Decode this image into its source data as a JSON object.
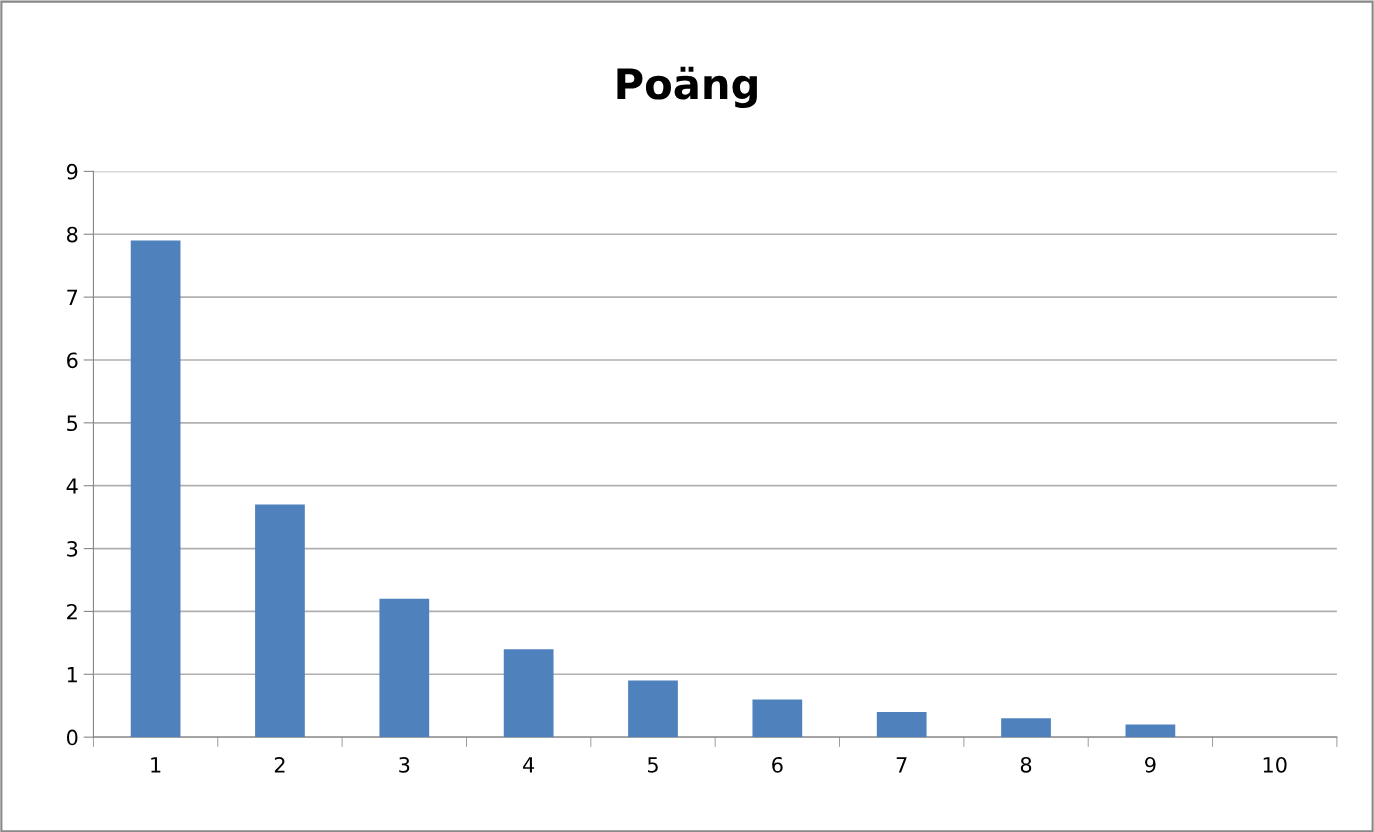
{
  "chart_data": {
    "type": "bar",
    "title": "Poäng",
    "categories": [
      "1",
      "2",
      "3",
      "4",
      "5",
      "6",
      "7",
      "8",
      "9",
      "10"
    ],
    "values": [
      7.9,
      3.7,
      2.2,
      1.4,
      0.9,
      0.6,
      0.4,
      0.3,
      0.2,
      0
    ],
    "color": "#4f81bd",
    "ylim": [
      0,
      9
    ],
    "yticks": [
      0,
      1,
      2,
      3,
      4,
      5,
      6,
      7,
      8,
      9
    ],
    "grid": "y"
  }
}
